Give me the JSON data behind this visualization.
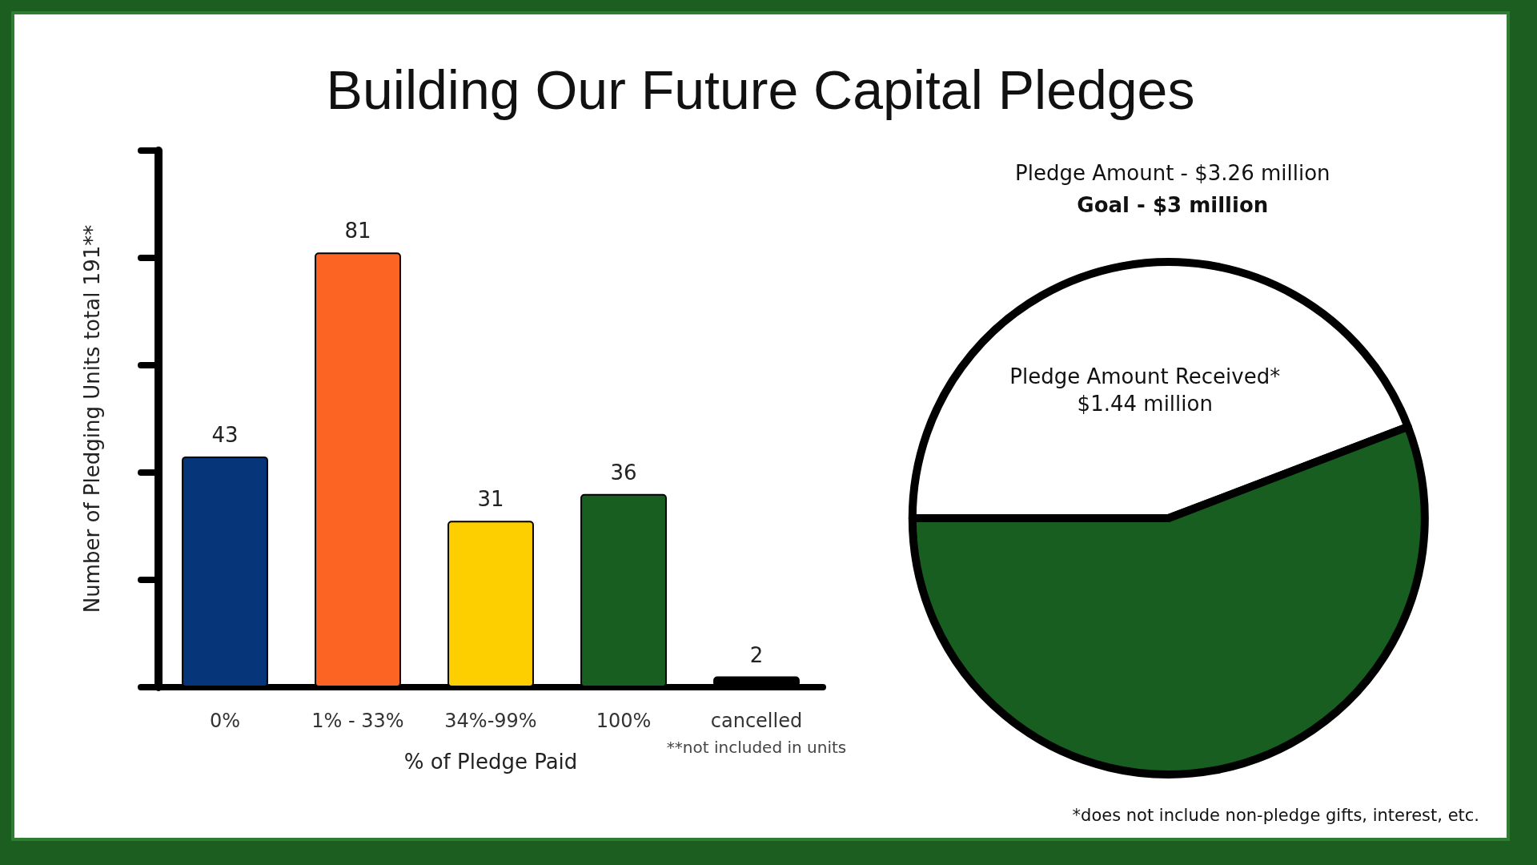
{
  "chart_data": [
    {
      "type": "bar",
      "title": "Building Our Future Capital Pledges",
      "xlabel": "% of Pledge Paid",
      "ylabel": "Number of Pledging Units total 191**",
      "categories": [
        "0%",
        "1% - 33%",
        "34%-99%",
        "100%",
        "cancelled"
      ],
      "values": [
        43,
        81,
        31,
        36,
        2
      ],
      "colors": [
        "#06357a",
        "#fb6423",
        "#fdcf00",
        "#185e20",
        "#000000"
      ],
      "tick_labels": "x",
      "data_labels": true,
      "grid": false,
      "legend": false,
      "annotations": [
        "**not included in units"
      ]
    },
    {
      "type": "pie",
      "title": "Pledge Amount - $3.26 million",
      "subtitle": "Goal - $3 million",
      "categories": [
        "Pledge Amount Received*\n$1.44 million",
        null
      ],
      "values": [
        44.2,
        55.8
      ],
      "colors": [
        "#ffffff",
        "#185e20"
      ],
      "legend": false,
      "annotations": [
        "*does not include non-pledge gifts, interest, etc."
      ]
    }
  ]
}
